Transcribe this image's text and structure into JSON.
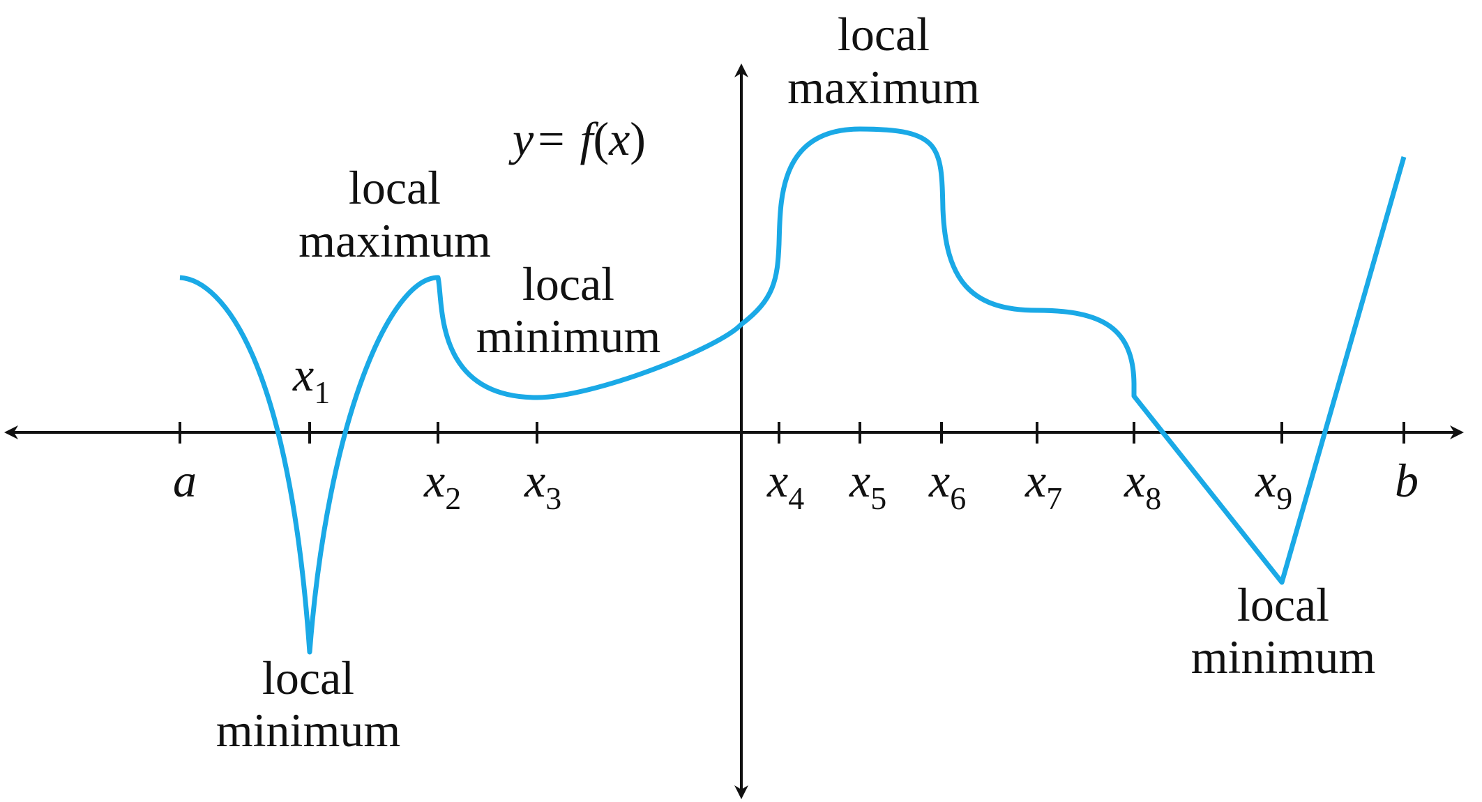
{
  "function_label": {
    "y": "y",
    "equals": "=",
    "f": "f",
    "open": "(",
    "x": "x",
    "close": ")"
  },
  "colors": {
    "curve": "#1aa9e6",
    "axis": "#111111"
  },
  "ticks": [
    {
      "main": "a",
      "sub": ""
    },
    {
      "main": "x",
      "sub": "1"
    },
    {
      "main": "x",
      "sub": "2"
    },
    {
      "main": "x",
      "sub": "3"
    },
    {
      "main": "x",
      "sub": "4"
    },
    {
      "main": "x",
      "sub": "5"
    },
    {
      "main": "x",
      "sub": "6"
    },
    {
      "main": "x",
      "sub": "7"
    },
    {
      "main": "x",
      "sub": "8"
    },
    {
      "main": "x",
      "sub": "9"
    },
    {
      "main": "b",
      "sub": ""
    }
  ],
  "annotations": [
    {
      "line1": "local",
      "line2": "minimum"
    },
    {
      "line1": "local",
      "line2": "maximum"
    },
    {
      "line1": "local",
      "line2": "minimum"
    },
    {
      "line1": "local",
      "line2": "maximum"
    },
    {
      "line1": "local",
      "line2": "minimum"
    }
  ]
}
